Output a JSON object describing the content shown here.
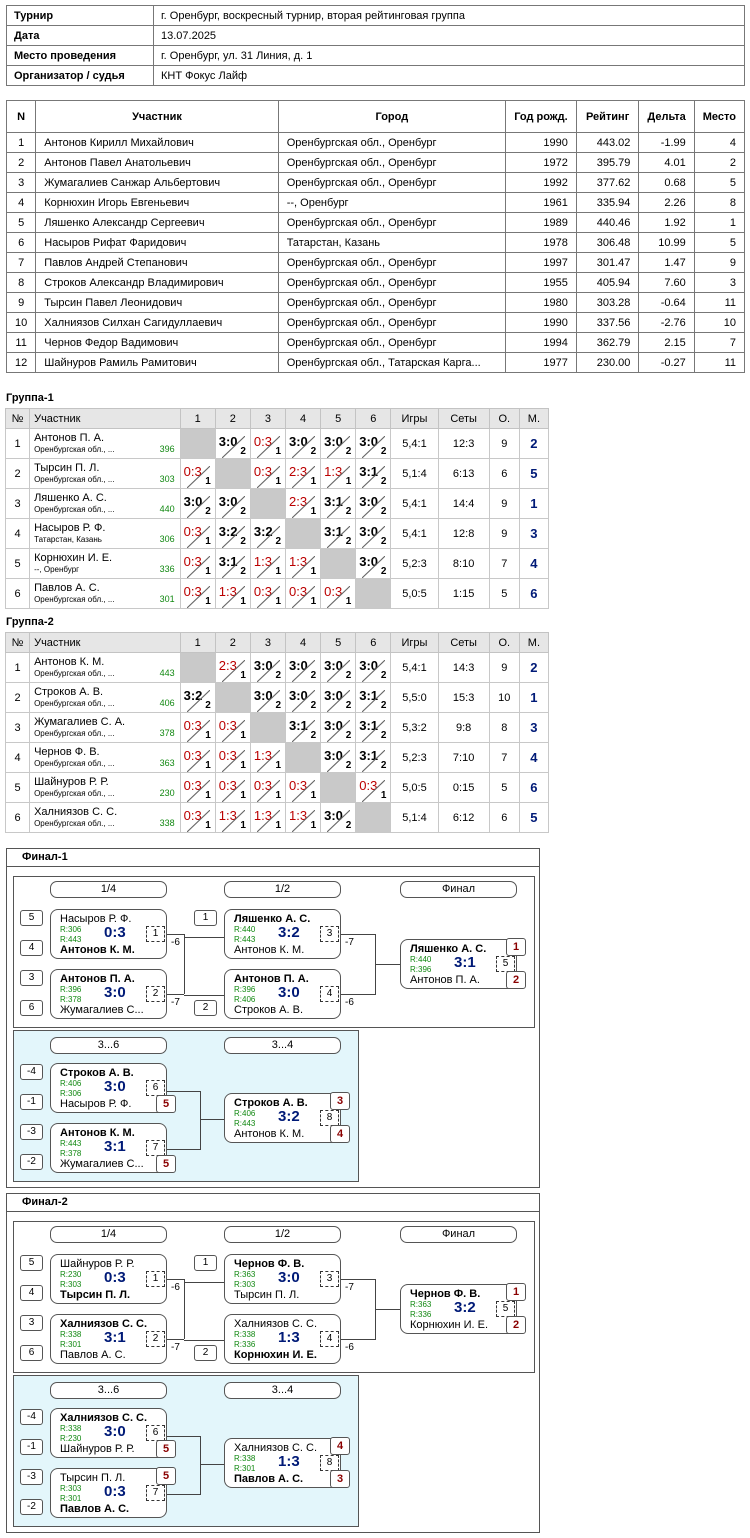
{
  "info": [
    [
      "Турнир",
      "г. Оренбург, воскресный турнир, вторая рейтинговая группа"
    ],
    [
      "Дата",
      "13.07.2025"
    ],
    [
      "Место проведения",
      "г. Оренбург, ул. 31 Линия, д. 1"
    ],
    [
      "Организатор / судья",
      "КНТ Фокус Лайф"
    ]
  ],
  "main": {
    "headers": [
      "N",
      "Участник",
      "Город",
      "Год рожд.",
      "Рейтинг",
      "Дельта",
      "Место"
    ],
    "rows": [
      [
        "1",
        "Антонов Кирилл Михайлович",
        "Оренбургская обл., Оренбург",
        "1990",
        "443.02",
        "-1.99",
        "4"
      ],
      [
        "2",
        "Антонов Павел Анатольевич",
        "Оренбургская обл., Оренбург",
        "1972",
        "395.79",
        "4.01",
        "2"
      ],
      [
        "3",
        "Жумагалиев Санжар Альбертович",
        "Оренбургская обл., Оренбург",
        "1992",
        "377.62",
        "0.68",
        "5"
      ],
      [
        "4",
        "Корнюхин Игорь Евгеньевич",
        "--, Оренбург",
        "1961",
        "335.94",
        "2.26",
        "8"
      ],
      [
        "5",
        "Ляшенко Александр Сергеевич",
        "Оренбургская обл., Оренбург",
        "1989",
        "440.46",
        "1.92",
        "1"
      ],
      [
        "6",
        "Насыров Рифат Фаридович",
        "Татарстан, Казань",
        "1978",
        "306.48",
        "10.99",
        "5"
      ],
      [
        "7",
        "Павлов Андрей Степанович",
        "Оренбургская обл., Оренбург",
        "1997",
        "301.47",
        "1.47",
        "9"
      ],
      [
        "8",
        "Строков Александр Владимирович",
        "Оренбургская обл., Оренбург",
        "1955",
        "405.94",
        "7.60",
        "3"
      ],
      [
        "9",
        "Тырсин Павел Леонидович",
        "Оренбургская обл., Оренбург",
        "1980",
        "303.28",
        "-0.64",
        "11"
      ],
      [
        "10",
        "Халниязов Силхан Сагидуллаевич",
        "Оренбургская обл., Оренбург",
        "1990",
        "337.56",
        "-2.76",
        "10"
      ],
      [
        "11",
        "Чернов Федор Вадимович",
        "Оренбургская обл., Оренбург",
        "1994",
        "362.79",
        "2.15",
        "7"
      ],
      [
        "12",
        "Шайнуров Рамиль Рамитович",
        "Оренбургская обл., Татарская Карга...",
        "1977",
        "230.00",
        "-0.27",
        "11"
      ]
    ]
  },
  "groups": [
    {
      "title": "Группа-1",
      "headers": [
        "№",
        "Участник",
        "1",
        "2",
        "3",
        "4",
        "5",
        "6",
        "Игры",
        "Сеты",
        "О.",
        "М."
      ],
      "rows": [
        {
          "n": "1",
          "name": "Антонов П. А.",
          "city": "Оренбургская обл., ...",
          "rating": "396",
          "res": [
            "",
            "3:0|2",
            "0:3|1",
            "3:0|2",
            "3:0|2",
            "3:0|2"
          ],
          "games": "5,4:1",
          "sets": "12:3",
          "pts": "9",
          "place": "2"
        },
        {
          "n": "2",
          "name": "Тырсин П. Л.",
          "city": "Оренбургская обл., ...",
          "rating": "303",
          "res": [
            "0:3|1",
            "",
            "0:3|1",
            "2:3|1",
            "1:3|1",
            "3:1|2"
          ],
          "games": "5,1:4",
          "sets": "6:13",
          "pts": "6",
          "place": "5"
        },
        {
          "n": "3",
          "name": "Ляшенко А. С.",
          "city": "Оренбургская обл., ...",
          "rating": "440",
          "res": [
            "3:0|2",
            "3:0|2",
            "",
            "2:3|1",
            "3:1|2",
            "3:0|2"
          ],
          "games": "5,4:1",
          "sets": "14:4",
          "pts": "9",
          "place": "1"
        },
        {
          "n": "4",
          "name": "Насыров Р. Ф.",
          "city": "Татарстан, Казань",
          "rating": "306",
          "res": [
            "0:3|1",
            "3:2|2",
            "3:2|2",
            "",
            "3:1|2",
            "3:0|2"
          ],
          "games": "5,4:1",
          "sets": "12:8",
          "pts": "9",
          "place": "3"
        },
        {
          "n": "5",
          "name": "Корнюхин И. Е.",
          "city": "--, Оренбург",
          "rating": "336",
          "res": [
            "0:3|1",
            "3:1|2",
            "1:3|1",
            "1:3|1",
            "",
            "3:0|2"
          ],
          "games": "5,2:3",
          "sets": "8:10",
          "pts": "7",
          "place": "4"
        },
        {
          "n": "6",
          "name": "Павлов А. С.",
          "city": "Оренбургская обл., ...",
          "rating": "301",
          "res": [
            "0:3|1",
            "1:3|1",
            "0:3|1",
            "0:3|1",
            "0:3|1",
            ""
          ],
          "games": "5,0:5",
          "sets": "1:15",
          "pts": "5",
          "place": "6"
        }
      ]
    },
    {
      "title": "Группа-2",
      "headers": [
        "№",
        "Участник",
        "1",
        "2",
        "3",
        "4",
        "5",
        "6",
        "Игры",
        "Сеты",
        "О.",
        "М."
      ],
      "rows": [
        {
          "n": "1",
          "name": "Антонов К. М.",
          "city": "Оренбургская обл., ...",
          "rating": "443",
          "res": [
            "",
            "2:3|1",
            "3:0|2",
            "3:0|2",
            "3:0|2",
            "3:0|2"
          ],
          "games": "5,4:1",
          "sets": "14:3",
          "pts": "9",
          "place": "2"
        },
        {
          "n": "2",
          "name": "Строков А. В.",
          "city": "Оренбургская обл., ...",
          "rating": "406",
          "res": [
            "3:2|2",
            "",
            "3:0|2",
            "3:0|2",
            "3:0|2",
            "3:1|2"
          ],
          "games": "5,5:0",
          "sets": "15:3",
          "pts": "10",
          "place": "1"
        },
        {
          "n": "3",
          "name": "Жумагалиев С. А.",
          "city": "Оренбургская обл., ...",
          "rating": "378",
          "res": [
            "0:3|1",
            "0:3|1",
            "",
            "3:1|2",
            "3:0|2",
            "3:1|2"
          ],
          "games": "5,3:2",
          "sets": "9:8",
          "pts": "8",
          "place": "3"
        },
        {
          "n": "4",
          "name": "Чернов Ф. В.",
          "city": "Оренбургская обл., ...",
          "rating": "363",
          "res": [
            "0:3|1",
            "0:3|1",
            "1:3|1",
            "",
            "3:0|2",
            "3:1|2"
          ],
          "games": "5,2:3",
          "sets": "7:10",
          "pts": "7",
          "place": "4"
        },
        {
          "n": "5",
          "name": "Шайнуров Р. Р.",
          "city": "Оренбургская обл., ...",
          "rating": "230",
          "res": [
            "0:3|1",
            "0:3|1",
            "0:3|1",
            "0:3|1",
            "",
            "0:3|1"
          ],
          "games": "5,0:5",
          "sets": "0:15",
          "pts": "5",
          "place": "6"
        },
        {
          "n": "6",
          "name": "Халниязов С. С.",
          "city": "Оренбургская обл., ...",
          "rating": "338",
          "res": [
            "0:3|1",
            "1:3|1",
            "1:3|1",
            "1:3|1",
            "3:0|2",
            ""
          ],
          "games": "5,1:4",
          "sets": "6:12",
          "pts": "6",
          "place": "5"
        }
      ]
    }
  ],
  "finals": [
    {
      "title": "Финал-1",
      "rounds": [
        "1/4",
        "1/2",
        "Финал"
      ],
      "consol_rounds": [
        "3...6",
        "3...4"
      ],
      "matches": [
        {
          "p1": "Насыров Р. Ф.",
          "r1": "R:306",
          "p2": "Антонов К. М.",
          "r2": "R:443",
          "w": 2,
          "score": "0:3",
          "num": "1",
          "s1": "5",
          "s2": "4",
          "loser": "-6"
        },
        {
          "p1": "Антонов П. А.",
          "r1": "R:396",
          "p2": "Жумагалиев С...",
          "r2": "R:378",
          "w": 1,
          "score": "3:0",
          "num": "2",
          "s1": "3",
          "s2": "6",
          "loser": "-7"
        },
        {
          "p1": "Ляшенко А. С.",
          "r1": "R:440",
          "p2": "Антонов К. М.",
          "r2": "R:443",
          "w": 1,
          "score": "3:2",
          "num": "3",
          "s1": "1",
          "loser": "-7"
        },
        {
          "p1": "Антонов П. А.",
          "r1": "R:396",
          "p2": "Строков А. В.",
          "r2": "R:406",
          "w": 1,
          "score": "3:0",
          "num": "4",
          "s2": "2",
          "loser": "-6"
        },
        {
          "p1": "Ляшенко А. С.",
          "r1": "R:440",
          "p2": "Антонов П. А.",
          "r2": "R:396",
          "w": 1,
          "score": "3:1",
          "num": "5",
          "pl1": "1",
          "pl2": "2"
        },
        {
          "p1": "Строков А. В.",
          "r1": "R:406",
          "p2": "Насыров Р. Ф.",
          "r2": "R:306",
          "w": 1,
          "score": "3:0",
          "num": "6",
          "s1": "-4",
          "s2": "-1",
          "pl2": "5"
        },
        {
          "p1": "Антонов К. М.",
          "r1": "R:443",
          "p2": "Жумагалиев С...",
          "r2": "R:378",
          "w": 1,
          "score": "3:1",
          "num": "7",
          "s1": "-3",
          "s2": "-2",
          "pl2": "5"
        },
        {
          "p1": "Строков А. В.",
          "r1": "R:406",
          "p2": "Антонов К. М.",
          "r2": "R:443",
          "w": 1,
          "score": "3:2",
          "num": "8",
          "pl1": "3",
          "pl2": "4"
        }
      ]
    },
    {
      "title": "Финал-2",
      "rounds": [
        "1/4",
        "1/2",
        "Финал"
      ],
      "consol_rounds": [
        "3...6",
        "3...4"
      ],
      "matches": [
        {
          "p1": "Шайнуров Р. Р.",
          "r1": "R:230",
          "p2": "Тырсин П. Л.",
          "r2": "R:303",
          "w": 2,
          "score": "0:3",
          "num": "1",
          "s1": "5",
          "s2": "4",
          "loser": "-6"
        },
        {
          "p1": "Халниязов С. С.",
          "r1": "R:338",
          "p2": "Павлов А. С.",
          "r2": "R:301",
          "w": 1,
          "score": "3:1",
          "num": "2",
          "s1": "3",
          "s2": "6",
          "loser": "-7"
        },
        {
          "p1": "Чернов Ф. В.",
          "r1": "R:363",
          "p2": "Тырсин П. Л.",
          "r2": "R:303",
          "w": 1,
          "score": "3:0",
          "num": "3",
          "s1": "1",
          "loser": "-7"
        },
        {
          "p1": "Халниязов С. С.",
          "r1": "R:338",
          "p2": "Корнюхин И. Е.",
          "r2": "R:336",
          "w": 2,
          "score": "1:3",
          "num": "4",
          "s2": "2",
          "loser": "-6"
        },
        {
          "p1": "Чернов Ф. В.",
          "r1": "R:363",
          "p2": "Корнюхин И. Е.",
          "r2": "R:336",
          "w": 1,
          "score": "3:2",
          "num": "5",
          "pl1": "1",
          "pl2": "2"
        },
        {
          "p1": "Халниязов С. С.",
          "r1": "R:338",
          "p2": "Шайнуров Р. Р.",
          "r2": "R:230",
          "w": 1,
          "score": "3:0",
          "num": "6",
          "s1": "-4",
          "s2": "-1",
          "pl2": "5"
        },
        {
          "p1": "Тырсин П. Л.",
          "r1": "R:303",
          "p2": "Павлов А. С.",
          "r2": "R:301",
          "w": 2,
          "score": "0:3",
          "num": "7",
          "s1": "-3",
          "s2": "-2",
          "pl1": "5"
        },
        {
          "p1": "Халниязов С. С.",
          "r1": "R:338",
          "p2": "Павлов А. С.",
          "r2": "R:301",
          "w": 2,
          "score": "1:3",
          "num": "8",
          "pl1": "4",
          "pl2": "3"
        }
      ]
    }
  ]
}
